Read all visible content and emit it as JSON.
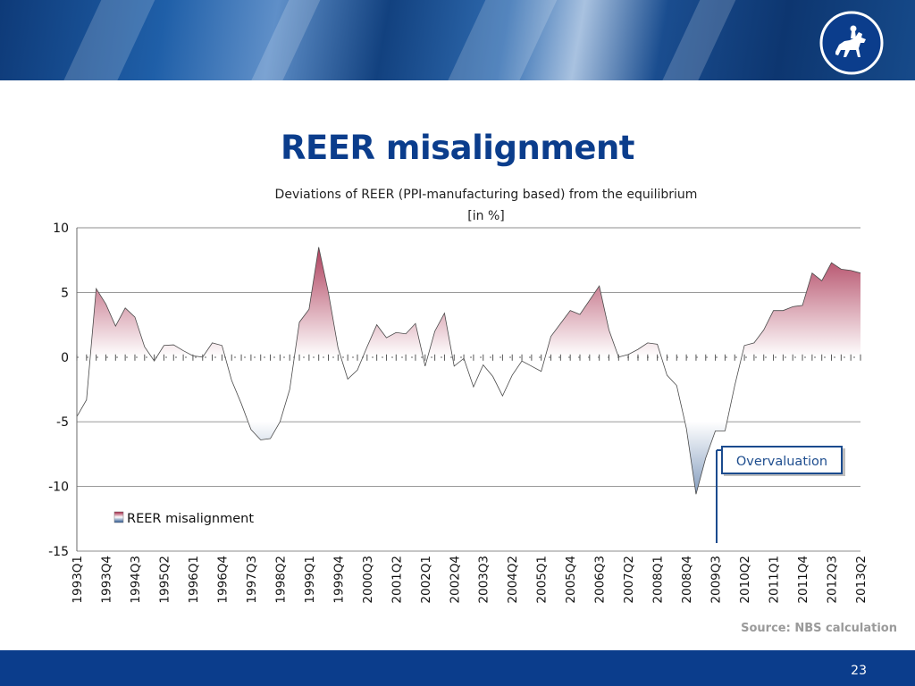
{
  "slide": {
    "title": "REER misalignment",
    "source": "Source: NBS calculation",
    "page_number": "23"
  },
  "colors": {
    "banner": "#0e3a78",
    "title": "#0b3d8c",
    "footer": "#0b3d8c",
    "positive_fill": "#a01d3f",
    "negative_fill": "#24508c",
    "callout_border": "#1b4b8e"
  },
  "logo": {
    "icon": "horse-rider-seal-icon"
  },
  "chart_data": {
    "type": "area",
    "title_line1": "Deviations of REER  (PPI-manufacturing based) from the equilibrium",
    "title_line2": "[in %]",
    "ylim": [
      -15,
      10
    ],
    "yticks": [
      "10",
      "5",
      "0",
      "-5",
      "-10",
      "-15"
    ],
    "grid": true,
    "legend_position": "lower-left",
    "x_tick_labels": [
      "1993Q1",
      "1993Q4",
      "1994Q3",
      "1995Q2",
      "1996Q1",
      "1996Q4",
      "1997Q3",
      "1998Q2",
      "1999Q1",
      "1999Q4",
      "2000Q3",
      "2001Q2",
      "2002Q1",
      "2002Q4",
      "2003Q3",
      "2004Q2",
      "2005Q1",
      "2005Q4",
      "2006Q3",
      "2007Q2",
      "2008Q1",
      "2008Q4",
      "2009Q3",
      "2010Q2",
      "2011Q1",
      "2011Q4",
      "2012Q3",
      "2013Q2"
    ],
    "start_period": "1993Q1",
    "series": [
      {
        "name": "REER misalignment",
        "values": [
          -4.6,
          -3.3,
          5.3,
          4.1,
          2.4,
          3.8,
          3.1,
          0.8,
          -0.3,
          0.9,
          0.95,
          0.5,
          0.1,
          0.0,
          1.1,
          0.9,
          -1.8,
          -3.6,
          -5.6,
          -6.4,
          -6.3,
          -5.0,
          -2.5,
          2.7,
          3.7,
          8.5,
          5.0,
          0.7,
          -1.7,
          -1.0,
          0.8,
          2.5,
          1.5,
          1.9,
          1.8,
          2.6,
          -0.7,
          2.0,
          3.4,
          -0.7,
          -0.1,
          -2.3,
          -0.6,
          -1.5,
          -3.0,
          -1.4,
          -0.3,
          -0.7,
          -1.1,
          1.6,
          2.6,
          3.6,
          3.3,
          4.4,
          5.5,
          2.1,
          0.0,
          0.2,
          0.6,
          1.1,
          1.0,
          -1.4,
          -2.2,
          -5.5,
          -10.6,
          -7.8,
          -5.7,
          -5.7,
          -2.2,
          0.9,
          1.1,
          2.1,
          3.6,
          3.6,
          3.9,
          4.0,
          6.5,
          5.9,
          7.3,
          6.8,
          6.7,
          6.5
        ]
      }
    ],
    "annotations": [
      {
        "text": "Overvaluation",
        "target_period": "2009Q3"
      }
    ]
  }
}
